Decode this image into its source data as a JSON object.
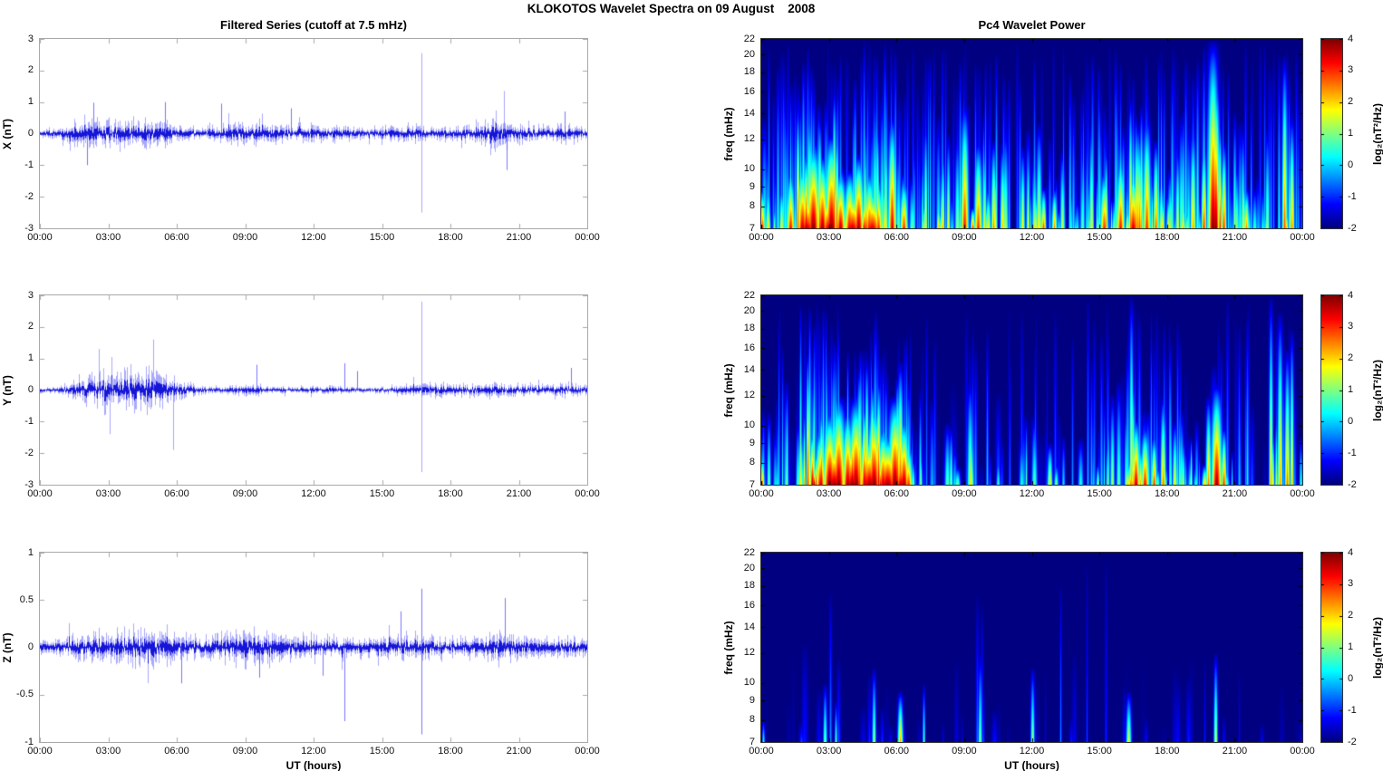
{
  "header": {
    "title": "KLOKOTOS Wavelet Spectra on 09 August    2008"
  },
  "chart_data": [
    {
      "type": "line",
      "id": "timeseries-x",
      "title": "Filtered Series (cutoff at 7.5 mHz)",
      "ylabel": "X (nT)",
      "xlabel": "UT (hours)",
      "line_color": "#0000ff",
      "ylim": [
        -3,
        3
      ],
      "ytick_values": [
        3,
        2,
        1,
        0,
        -1,
        -2,
        -3
      ],
      "ytick_labels": [
        "3",
        "2",
        "1",
        "0",
        "-1",
        "-2",
        "-3"
      ],
      "x_range_hours": [
        0,
        24
      ],
      "x_ticks": [
        "00:00",
        "03:00",
        "06:00",
        "09:00",
        "12:00",
        "15:00",
        "18:00",
        "21:00",
        "00:00"
      ],
      "seed": 11,
      "envelope_hours": [
        0,
        1,
        2,
        3,
        4,
        5,
        6,
        7,
        8,
        9,
        10,
        11,
        12,
        13,
        14,
        15,
        16,
        17,
        18,
        19,
        20,
        21,
        22,
        23,
        24
      ],
      "envelope_amp": [
        0.12,
        0.18,
        0.42,
        0.38,
        0.36,
        0.4,
        0.22,
        0.16,
        0.28,
        0.33,
        0.28,
        0.22,
        0.26,
        0.22,
        0.18,
        0.2,
        0.24,
        0.22,
        0.18,
        0.28,
        0.5,
        0.28,
        0.22,
        0.28,
        0.18
      ],
      "spikes": [
        [
          16.72,
          2.55
        ],
        [
          16.72,
          -2.5
        ],
        [
          20.35,
          1.35
        ],
        [
          20.45,
          -1.15
        ],
        [
          2.35,
          0.98
        ],
        [
          2.05,
          -1.0
        ],
        [
          5.5,
          1.0
        ],
        [
          7.95,
          0.95
        ],
        [
          11.0,
          0.8
        ],
        [
          23.0,
          0.7
        ]
      ]
    },
    {
      "type": "line",
      "id": "timeseries-y",
      "title": "",
      "ylabel": "Y (nT)",
      "xlabel": "UT (hours)",
      "line_color": "#0000ff",
      "ylim": [
        -3,
        3
      ],
      "ytick_values": [
        3,
        2,
        1,
        0,
        -1,
        -2,
        -3
      ],
      "ytick_labels": [
        "3",
        "2",
        "1",
        "0",
        "-1",
        "-2",
        "-3"
      ],
      "x_range_hours": [
        0,
        24
      ],
      "x_ticks": [
        "00:00",
        "03:00",
        "06:00",
        "09:00",
        "12:00",
        "15:00",
        "18:00",
        "21:00",
        "00:00"
      ],
      "seed": 22,
      "envelope_hours": [
        0,
        1,
        2,
        3,
        4,
        5,
        6,
        7,
        8,
        9,
        10,
        11,
        12,
        13,
        14,
        15,
        16,
        17,
        18,
        19,
        20,
        21,
        22,
        23,
        24
      ],
      "envelope_amp": [
        0.08,
        0.12,
        0.42,
        0.48,
        0.52,
        0.55,
        0.3,
        0.12,
        0.1,
        0.16,
        0.1,
        0.08,
        0.1,
        0.12,
        0.08,
        0.1,
        0.14,
        0.22,
        0.18,
        0.2,
        0.22,
        0.18,
        0.14,
        0.22,
        0.15
      ],
      "spikes": [
        [
          16.72,
          2.8
        ],
        [
          16.72,
          -2.6
        ],
        [
          5.85,
          -1.9
        ],
        [
          4.95,
          1.6
        ],
        [
          3.05,
          -1.4
        ],
        [
          2.6,
          1.3
        ],
        [
          9.5,
          0.8
        ],
        [
          13.35,
          0.85
        ],
        [
          13.9,
          0.6
        ],
        [
          23.3,
          0.7
        ]
      ]
    },
    {
      "type": "line",
      "id": "timeseries-z",
      "title": "",
      "ylabel": "Z (nT)",
      "xlabel": "UT (hours)",
      "line_color": "#0000ff",
      "ylim": [
        -1,
        1
      ],
      "ytick_values": [
        1,
        0.5,
        0,
        -0.5,
        -1
      ],
      "ytick_labels": [
        "1",
        "0.5",
        "0",
        "-0.5",
        "-1"
      ],
      "x_range_hours": [
        0,
        24
      ],
      "x_ticks": [
        "00:00",
        "03:00",
        "06:00",
        "09:00",
        "12:00",
        "15:00",
        "18:00",
        "21:00",
        "00:00"
      ],
      "seed": 33,
      "envelope_hours": [
        0,
        1,
        2,
        3,
        4,
        5,
        6,
        7,
        8,
        9,
        10,
        11,
        12,
        13,
        14,
        15,
        16,
        17,
        18,
        19,
        20,
        21,
        22,
        23,
        24
      ],
      "envelope_amp": [
        0.07,
        0.09,
        0.14,
        0.14,
        0.17,
        0.17,
        0.14,
        0.11,
        0.14,
        0.17,
        0.14,
        0.11,
        0.11,
        0.1,
        0.09,
        0.11,
        0.11,
        0.11,
        0.09,
        0.09,
        0.14,
        0.11,
        0.09,
        0.09,
        0.07
      ],
      "spikes": [
        [
          16.72,
          0.62
        ],
        [
          16.72,
          -0.92
        ],
        [
          13.35,
          -0.78
        ],
        [
          15.8,
          0.38
        ],
        [
          20.4,
          0.52
        ],
        [
          6.2,
          -0.38
        ],
        [
          9.6,
          -0.32
        ],
        [
          12.4,
          -0.3
        ]
      ]
    },
    {
      "type": "heatmap",
      "id": "spectrogram-x",
      "title": "Pc4 Wavelet Power",
      "ylabel": "freq (mHz)",
      "xlabel": "UT (hours)",
      "yscale": "log",
      "ylim": [
        7,
        22
      ],
      "ytick_values": [
        22,
        20,
        18,
        16,
        14,
        12,
        10,
        9,
        8,
        7
      ],
      "ytick_labels": [
        "22",
        "20",
        "18",
        "16",
        "14",
        "12",
        "10",
        "9",
        "8",
        "7"
      ],
      "x_range_hours": [
        0,
        24
      ],
      "x_ticks": [
        "00:00",
        "03:00",
        "06:00",
        "09:00",
        "12:00",
        "15:00",
        "18:00",
        "21:00",
        "00:00"
      ],
      "colorbar": {
        "label": "log₂(nT²/Hz)",
        "range": [
          -2,
          4
        ],
        "tick_values": [
          4,
          3,
          2,
          1,
          0,
          -1,
          -2
        ],
        "tick_labels": [
          "4",
          "3",
          "2",
          "1",
          "0",
          "-1",
          "-2"
        ],
        "colormap": "jet"
      },
      "base_power": -2,
      "seed": 101,
      "streaks": 760,
      "tall_frac": 0.28,
      "imax": 6,
      "activity": [
        0.45,
        0.7,
        0.95,
        1,
        0.95,
        0.9,
        0.75,
        0.5,
        0.6,
        0.8,
        0.65,
        0.5,
        0.5,
        0.45,
        0.5,
        0.7,
        0.8,
        0.7,
        0.55,
        0.6,
        0.9,
        0.55,
        0.5,
        0.6,
        0.4
      ],
      "events": [
        [
          0.05,
          3,
          9,
          2
        ],
        [
          0.3,
          2,
          9,
          2
        ],
        [
          1.3,
          3.2,
          10,
          3
        ],
        [
          1.8,
          3.6,
          10.5,
          4
        ],
        [
          2.0,
          3.5,
          9,
          8
        ],
        [
          2.3,
          4,
          12,
          5
        ],
        [
          2.7,
          3.8,
          11,
          4
        ],
        [
          3.0,
          3.6,
          9,
          8
        ],
        [
          3.1,
          4,
          12.5,
          5
        ],
        [
          3.5,
          3.6,
          10,
          4
        ],
        [
          3.9,
          3.4,
          10,
          4
        ],
        [
          4.0,
          3.5,
          9,
          8
        ],
        [
          4.3,
          3.8,
          11,
          4
        ],
        [
          4.8,
          3.2,
          10,
          4
        ],
        [
          4.9,
          3.4,
          9,
          8
        ],
        [
          5.2,
          3.0,
          9.5,
          3
        ],
        [
          5.8,
          3.5,
          14,
          3
        ],
        [
          6.3,
          3.0,
          9.5,
          3
        ],
        [
          9.0,
          3.2,
          15,
          3
        ],
        [
          9.6,
          3.0,
          12,
          3
        ],
        [
          10.3,
          2.5,
          12,
          2
        ],
        [
          12.5,
          2.8,
          9,
          2
        ],
        [
          13.0,
          2.5,
          9,
          2
        ],
        [
          15.2,
          3.0,
          10,
          3
        ],
        [
          15.9,
          3.2,
          11,
          3
        ],
        [
          16.5,
          3.5,
          10,
          4
        ],
        [
          17.1,
          3.0,
          14,
          3
        ],
        [
          17.5,
          2.8,
          12,
          2
        ],
        [
          19.6,
          3.0,
          12,
          2
        ],
        [
          20.0,
          4,
          22,
          4
        ],
        [
          20.15,
          4,
          18,
          3
        ],
        [
          20.5,
          3.0,
          12,
          2
        ],
        [
          21.5,
          2.5,
          9,
          2
        ],
        [
          23.2,
          2.8,
          20,
          2
        ],
        [
          23.5,
          2.5,
          14,
          2
        ]
      ]
    },
    {
      "type": "heatmap",
      "id": "spectrogram-y",
      "title": "",
      "ylabel": "freq (mHz)",
      "xlabel": "UT (hours)",
      "yscale": "log",
      "ylim": [
        7,
        22
      ],
      "ytick_values": [
        22,
        20,
        18,
        16,
        14,
        12,
        10,
        9,
        8,
        7
      ],
      "ytick_labels": [
        "22",
        "20",
        "18",
        "16",
        "14",
        "12",
        "10",
        "9",
        "8",
        "7"
      ],
      "x_range_hours": [
        0,
        24
      ],
      "x_ticks": [
        "00:00",
        "03:00",
        "06:00",
        "09:00",
        "12:00",
        "15:00",
        "18:00",
        "21:00",
        "00:00"
      ],
      "colorbar": {
        "label": "log₂(nT²/Hz)",
        "range": [
          -2,
          4
        ],
        "tick_values": [
          4,
          3,
          2,
          1,
          0,
          -1,
          -2
        ],
        "tick_labels": [
          "4",
          "3",
          "2",
          "1",
          "0",
          "-1",
          "-2"
        ],
        "colormap": "jet"
      },
      "base_power": -2,
      "seed": 202,
      "streaks": 620,
      "tall_frac": 0.26,
      "imax": 6,
      "activity": [
        0.25,
        0.5,
        0.95,
        1,
        1,
        1,
        0.85,
        0.3,
        0.35,
        0.4,
        0.3,
        0.25,
        0.3,
        0.3,
        0.25,
        0.4,
        0.65,
        0.75,
        0.65,
        0.55,
        0.75,
        0.5,
        0.4,
        0.65,
        0.3
      ],
      "events": [
        [
          0.05,
          2.5,
          8.5,
          1.5
        ],
        [
          2.6,
          3.4,
          10,
          4
        ],
        [
          3.0,
          4,
          11,
          5
        ],
        [
          3.2,
          3.8,
          9.5,
          8
        ],
        [
          3.4,
          4,
          12,
          5
        ],
        [
          3.8,
          3.8,
          11,
          4
        ],
        [
          4.0,
          3.8,
          9.5,
          8
        ],
        [
          4.2,
          4,
          12,
          5
        ],
        [
          4.6,
          3.6,
          10,
          4
        ],
        [
          4.8,
          3.8,
          9.5,
          8
        ],
        [
          5.0,
          4,
          11.5,
          5
        ],
        [
          5.4,
          3.6,
          10,
          4
        ],
        [
          5.6,
          3.8,
          9.5,
          8
        ],
        [
          5.9,
          4,
          12,
          5
        ],
        [
          6.2,
          3.6,
          9,
          6
        ],
        [
          6.3,
          3.8,
          10.5,
          4
        ],
        [
          6.5,
          3.0,
          9,
          3
        ],
        [
          9.3,
          2.0,
          10,
          2
        ],
        [
          12.8,
          1.8,
          9,
          2
        ],
        [
          16.4,
          2.2,
          22,
          1.5
        ],
        [
          16.6,
          3.6,
          10.5,
          3
        ],
        [
          17.0,
          3.2,
          10,
          3
        ],
        [
          17.4,
          3.0,
          9.5,
          2
        ],
        [
          17.8,
          2.6,
          12,
          2
        ],
        [
          19.8,
          2.6,
          12,
          2
        ],
        [
          20.2,
          3.8,
          13,
          4
        ],
        [
          20.5,
          3.0,
          10,
          2
        ],
        [
          22.6,
          2.2,
          22,
          1.5
        ],
        [
          23.0,
          2.4,
          20,
          2
        ],
        [
          23.3,
          2.6,
          16,
          2
        ],
        [
          23.5,
          2.2,
          18,
          1.5
        ]
      ]
    },
    {
      "type": "heatmap",
      "id": "spectrogram-z",
      "title": "",
      "ylabel": "freq (mHz)",
      "xlabel": "UT (hours)",
      "yscale": "log",
      "ylim": [
        7,
        22
      ],
      "ytick_values": [
        22,
        20,
        18,
        16,
        14,
        12,
        10,
        9,
        8,
        7
      ],
      "ytick_labels": [
        "22",
        "20",
        "18",
        "16",
        "14",
        "12",
        "10",
        "9",
        "8",
        "7"
      ],
      "x_range_hours": [
        0,
        24
      ],
      "x_ticks": [
        "00:00",
        "03:00",
        "06:00",
        "09:00",
        "12:00",
        "15:00",
        "18:00",
        "21:00",
        "00:00"
      ],
      "colorbar": {
        "label": "log₂(nT²/Hz)",
        "range": [
          -2,
          4
        ],
        "tick_values": [
          4,
          3,
          2,
          1,
          0,
          -1,
          -2
        ],
        "tick_labels": [
          "4",
          "3",
          "2",
          "1",
          "0",
          "-1",
          "-2"
        ],
        "colormap": "jet"
      },
      "base_power": -2,
      "seed": 303,
      "streaks": 300,
      "tall_frac": 0.12,
      "imax": 2.6,
      "activity": [
        0.08,
        0.12,
        0.3,
        0.3,
        0.3,
        0.35,
        0.3,
        0.25,
        0.25,
        0.3,
        0.25,
        0.25,
        0.2,
        0.15,
        0.15,
        0.2,
        0.25,
        0.2,
        0.12,
        0.12,
        0.2,
        0.15,
        0.1,
        0.1,
        0.06
      ],
      "events": [
        [
          0.1,
          0.5,
          8,
          1
        ],
        [
          2.8,
          1.0,
          10,
          1.5
        ],
        [
          3.3,
          0.8,
          9,
          1
        ],
        [
          5.0,
          1.2,
          11,
          1.5
        ],
        [
          6.15,
          2.3,
          9.5,
          2
        ],
        [
          7.2,
          0.8,
          10,
          1
        ],
        [
          9.7,
          1.0,
          12,
          1.5
        ],
        [
          12.0,
          1.2,
          11,
          1.5
        ],
        [
          16.3,
          1.6,
          9.5,
          2
        ],
        [
          20.15,
          1.6,
          12,
          1.5
        ]
      ]
    }
  ]
}
